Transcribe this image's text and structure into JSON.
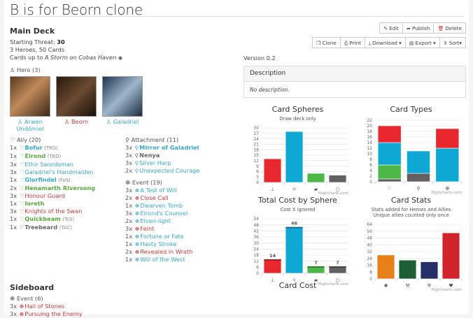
{
  "title": "B is for Beorn clone",
  "main_deck": {
    "heading": "Main Deck",
    "starting_threat_label": "Starting Threat:",
    "starting_threat": "30",
    "summary": "3 Heroes, 50 Cards",
    "cards_up_to_label": "Cards up to",
    "cards_up_to_pack": "A Storm on Cobas Haven",
    "hero_section": "Hero (3)",
    "heroes": [
      {
        "name": "Arwen Undómiel",
        "sphere": "spirit"
      },
      {
        "name": "Beorn",
        "sphere": "tactics"
      },
      {
        "name": "Galadriel",
        "sphere": "spirit"
      }
    ],
    "ally_section": "Ally (20)",
    "allies": [
      {
        "qty": "1x",
        "name": "Bofur",
        "set": "(TRG)",
        "sphere": "spirit",
        "unique": true
      },
      {
        "qty": "1x",
        "name": "Elrond",
        "set": "(TRD)",
        "sphere": "lore",
        "unique": true
      },
      {
        "qty": "3x",
        "name": "Ethir Swordsman",
        "set": "",
        "sphere": "spirit",
        "unique": false
      },
      {
        "qty": "3x",
        "name": "Galadriel's Handmaiden",
        "set": "",
        "sphere": "spirit",
        "unique": false
      },
      {
        "qty": "1x",
        "name": "Glorfindel",
        "set": "(FoS)",
        "sphere": "spirit",
        "unique": true
      },
      {
        "qty": "2x",
        "name": "Henamarth Riversong",
        "set": "",
        "sphere": "lore",
        "unique": true
      },
      {
        "qty": "3x",
        "name": "Honour Guard",
        "set": "",
        "sphere": "tactics",
        "unique": false
      },
      {
        "qty": "1x",
        "name": "Ioreth",
        "set": "",
        "sphere": "lore",
        "unique": true
      },
      {
        "qty": "3x",
        "name": "Knights of the Swan",
        "set": "",
        "sphere": "tactics",
        "unique": false
      },
      {
        "qty": "1x",
        "name": "Quickbeam",
        "set": "(ToS)",
        "sphere": "lore",
        "unique": true
      },
      {
        "qty": "1x",
        "name": "Treebeard",
        "set": "(TAC)",
        "sphere": "neutral",
        "unique": true
      }
    ],
    "attachment_section": "Attachment (11)",
    "attachments": [
      {
        "qty": "3x",
        "name": "Mirror of Galadriel",
        "sphere": "spirit",
        "unique": true
      },
      {
        "qty": "3x",
        "name": "Nenya",
        "sphere": "neutral",
        "unique": true
      },
      {
        "qty": "3x",
        "name": "Silver Harp",
        "sphere": "spirit",
        "unique": false
      },
      {
        "qty": "2x",
        "name": "Unexpected Courage",
        "sphere": "spirit",
        "unique": false
      }
    ],
    "event_section": "Event (19)",
    "events": [
      {
        "qty": "3x",
        "name": "A Test of Will",
        "sphere": "spirit"
      },
      {
        "qty": "2x",
        "name": "Close Call",
        "sphere": "tactics"
      },
      {
        "qty": "1x",
        "name": "Dwarven Tomb",
        "sphere": "spirit"
      },
      {
        "qty": "3x",
        "name": "Elrond's Counsel",
        "sphere": "spirit"
      },
      {
        "qty": "2x",
        "name": "Elven-light",
        "sphere": "spirit"
      },
      {
        "qty": "3x",
        "name": "Feint",
        "sphere": "tactics"
      },
      {
        "qty": "1x",
        "name": "Fortune or Fate",
        "sphere": "spirit"
      },
      {
        "qty": "1x",
        "name": "Hasty Stroke",
        "sphere": "spirit"
      },
      {
        "qty": "2x",
        "name": "Revealed in Wrath",
        "sphere": "tactics"
      },
      {
        "qty": "1x",
        "name": "Will of the West",
        "sphere": "spirit"
      }
    ]
  },
  "sideboard": {
    "heading": "Sideboard",
    "event_section": "Event (6)",
    "events": [
      {
        "qty": "3x",
        "name": "Hail of Stones",
        "sphere": "tactics"
      },
      {
        "qty": "3x",
        "name": "Pursuing the Enemy",
        "sphere": "tactics"
      }
    ]
  },
  "toolbar": {
    "edit": "Edit",
    "publish": "Publish",
    "delete": "Delete",
    "clone": "Clone",
    "print": "Print",
    "download": "Download",
    "export": "Export",
    "sort": "Sort"
  },
  "version": "Version 0.2",
  "description": {
    "heading": "Description",
    "body": "No description."
  },
  "sphere_colors": {
    "tactics": "#e8282e",
    "spirit": "#0fa8d4",
    "lore": "#4db848",
    "neutral": "#616161"
  },
  "stat_colors": {
    "willpower": "#e8801a",
    "attack": "#1e5e37",
    "defense": "#272f68",
    "hitpoints": "#d0232b"
  },
  "credits": "Highcharts.com",
  "chart_data": [
    {
      "type": "bar",
      "title": "Card Spheres",
      "subtitle": "Draw deck only",
      "categories": [
        "Tactics",
        "Spirit",
        "Lore",
        "Neutral"
      ],
      "values": [
        13,
        28,
        5,
        4
      ],
      "yticks": [
        0,
        3,
        6,
        9,
        12,
        15,
        18,
        21,
        24,
        27,
        30
      ],
      "ylim": [
        0,
        30
      ]
    },
    {
      "type": "bar",
      "stacked": true,
      "title": "Card Types",
      "subtitle": "",
      "categories": [
        "Ally",
        "Attachment",
        "Event"
      ],
      "series": [
        {
          "name": "Neutral",
          "values": [
            1,
            3,
            0
          ]
        },
        {
          "name": "Lore",
          "values": [
            5,
            0,
            0
          ]
        },
        {
          "name": "Spirit",
          "values": [
            8,
            8,
            12
          ]
        },
        {
          "name": "Tactics",
          "values": [
            6,
            0,
            7
          ]
        }
      ],
      "yticks": [
        0,
        2,
        4,
        6,
        8,
        10,
        12,
        14,
        16,
        18,
        20,
        22
      ],
      "ylim": [
        0,
        22
      ]
    },
    {
      "type": "bar",
      "title": "Total Cost by Sphere",
      "subtitle": "Cost X ignored",
      "categories": [
        "Tactics",
        "Spirit",
        "Lore",
        "Neutral"
      ],
      "values": [
        14,
        46,
        7,
        7
      ],
      "data_labels": [
        "14",
        "46",
        "7",
        "7"
      ],
      "yticks": [
        0,
        6,
        12,
        18,
        24,
        30,
        36,
        42,
        48,
        54
      ],
      "ylim": [
        0,
        54
      ]
    },
    {
      "type": "bar",
      "title": "Card Stats",
      "subtitle": "Stats added for Heroes and Allies\nUnique allies counted only once",
      "categories": [
        "Willpower",
        "Attack",
        "Defense",
        "Hit Points"
      ],
      "values": [
        28,
        22,
        20,
        54
      ],
      "yticks": [
        0,
        8,
        16,
        24,
        32,
        40,
        48,
        56,
        64
      ],
      "ylim": [
        0,
        64
      ]
    }
  ],
  "next_chart_title": "Card Cost"
}
